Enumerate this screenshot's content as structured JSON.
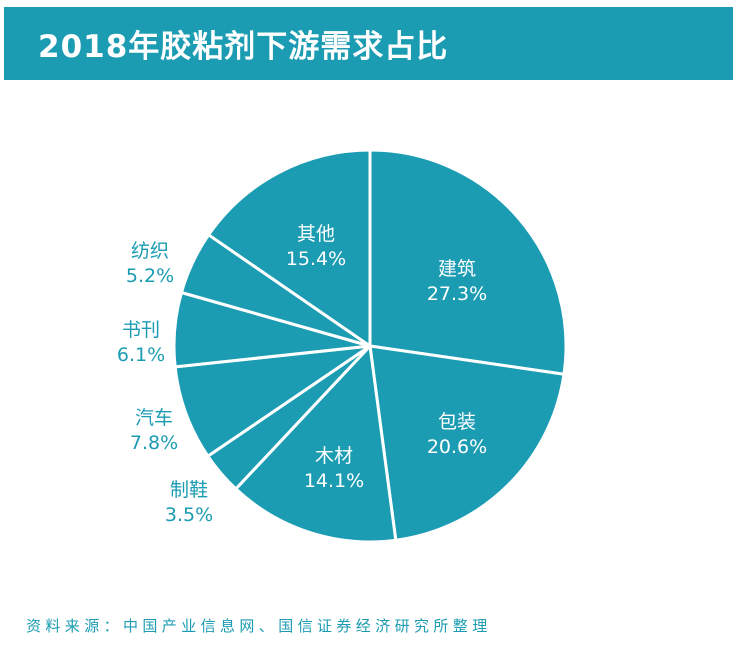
{
  "chart_data": {
    "type": "pie",
    "title": "2018年胶粘剂下游需求占比",
    "slices": [
      {
        "name": "建筑",
        "value": 27.3,
        "label": "27.3%"
      },
      {
        "name": "包装",
        "value": 20.6,
        "label": "20.6%"
      },
      {
        "name": "木材",
        "value": 14.1,
        "label": "14.1%"
      },
      {
        "name": "制鞋",
        "value": 3.5,
        "label": "3.5%"
      },
      {
        "name": "汽车",
        "value": 7.8,
        "label": "7.8%"
      },
      {
        "name": "书刊",
        "value": 6.1,
        "label": "6.1%"
      },
      {
        "name": "纺织",
        "value": 5.2,
        "label": "5.2%"
      },
      {
        "name": "其他",
        "value": 15.4,
        "label": "15.4%"
      }
    ],
    "start_direction": "12 o'clock",
    "order": "clockwise",
    "legend": "none",
    "labels": "inside large slices, outside small slices"
  },
  "source": "资料来源：中国产业信息网、国信证券经济研究所整理",
  "colors": {
    "slice_fill": "#1b9cb3",
    "slice_border": "#ffffff",
    "title_bar": "#1b9cb3",
    "title_text": "#ffffff",
    "outside_label": "#1b9cb3",
    "inside_label": "#ffffff"
  }
}
